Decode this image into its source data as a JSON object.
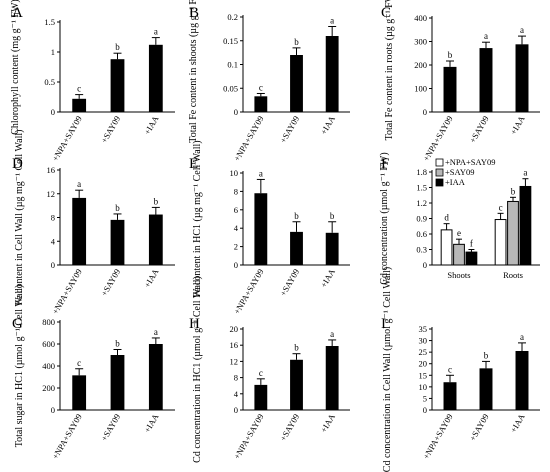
{
  "chart_data": [
    {
      "panel": "A",
      "type": "bar",
      "ylabel": "Chlorophyll content (mg g⁻¹ FW)",
      "categories": [
        "+NPA+SAY09",
        "+SAY09",
        "+IAA"
      ],
      "values": [
        0.22,
        0.88,
        1.12
      ],
      "errors": [
        0.07,
        0.1,
        0.12
      ],
      "letters": [
        "c",
        "b",
        "a"
      ],
      "ylim": [
        0,
        1.5
      ],
      "yticks": [
        "0",
        "0.5",
        "1",
        "1.5"
      ],
      "ytick_values": [
        0,
        0.5,
        1,
        1.5
      ]
    },
    {
      "panel": "B",
      "type": "bar",
      "ylabel": "Total Fe content in shoots (µg g⁻¹ FW)",
      "categories": [
        "+NPA+SAY09",
        "+SAY09",
        "+IAA"
      ],
      "values": [
        0.033,
        0.12,
        0.16
      ],
      "errors": [
        0.006,
        0.015,
        0.02
      ],
      "letters": [
        "c",
        "b",
        "a"
      ],
      "ylim": [
        0,
        0.2
      ],
      "yticks": [
        "0",
        "0.05",
        "0.1",
        "0.15",
        "0.2"
      ],
      "ytick_values": [
        0,
        0.05,
        0.1,
        0.15,
        0.2
      ]
    },
    {
      "panel": "C",
      "type": "bar",
      "ylabel": "Total Fe content in roots (µg g⁻¹ FW)",
      "categories": [
        "+NPA+SAY09",
        "+SAY09",
        "+IAA"
      ],
      "values": [
        192,
        272,
        288
      ],
      "errors": [
        25,
        25,
        35
      ],
      "letters": [
        "b",
        "a",
        "a"
      ],
      "ylim": [
        0,
        400
      ],
      "yticks": [
        "0",
        "100",
        "200",
        "300",
        "400"
      ],
      "ytick_values": [
        0,
        100,
        200,
        300,
        400
      ]
    },
    {
      "panel": "D",
      "type": "bar",
      "ylabel": "Fe content in Cell Wall (µg mg⁻¹ Cell Wall)",
      "categories": [
        "+NPA+SAY09",
        "+SAY09",
        "+IAA"
      ],
      "values": [
        11.3,
        7.6,
        8.5
      ],
      "errors": [
        1.3,
        1.0,
        1.2
      ],
      "letters": [
        "a",
        "b",
        "b"
      ],
      "ylim": [
        0,
        16
      ],
      "yticks": [
        "0",
        "4",
        "8",
        "12",
        "16"
      ],
      "ytick_values": [
        0,
        4,
        8,
        12,
        16
      ]
    },
    {
      "panel": "E",
      "type": "bar",
      "ylabel": "Fe content in HC1 (µg mg⁻¹ Cell Wall)",
      "categories": [
        "+NPA+SAY09",
        "+SAY09",
        "+IAA"
      ],
      "values": [
        7.8,
        3.6,
        3.5
      ],
      "errors": [
        1.5,
        1.1,
        1.2
      ],
      "letters": [
        "a",
        "b",
        "b"
      ],
      "ylim": [
        0,
        10
      ],
      "yticks": [
        "0",
        "2",
        "4",
        "6",
        "8",
        "10"
      ],
      "ytick_values": [
        0,
        2,
        4,
        6,
        8,
        10
      ]
    },
    {
      "panel": "F",
      "type": "grouped-bar",
      "ylabel": "Cd concentration (µmol g⁻¹ FW)",
      "categories": [
        "Shoots",
        "Roots"
      ],
      "series": [
        {
          "name": "+NPA+SAY09",
          "values": [
            0.68,
            0.88
          ],
          "errors": [
            0.12,
            0.12
          ],
          "letters": [
            "d",
            "c"
          ],
          "fill": "#ffffff"
        },
        {
          "name": "+SAY09",
          "values": [
            0.4,
            1.23
          ],
          "errors": [
            0.1,
            0.08
          ],
          "letters": [
            "e",
            "b"
          ],
          "fill": "#b8b8b8"
        },
        {
          "name": "+IAA",
          "values": [
            0.25,
            1.52
          ],
          "errors": [
            0.05,
            0.15
          ],
          "letters": [
            "f",
            "a"
          ],
          "fill": "#000000"
        }
      ],
      "legend_position": "top-left",
      "ylim": [
        0,
        1.8
      ],
      "yticks": [
        "0",
        "0.3",
        "0.6",
        "0.9",
        "1.2",
        "1.5",
        "1.8"
      ],
      "ytick_values": [
        0,
        0.3,
        0.6,
        0.9,
        1.2,
        1.5,
        1.8
      ]
    },
    {
      "panel": "G",
      "type": "bar",
      "ylabel": "Total sugar in HC1 (µmol g⁻¹ Cell Wall)",
      "categories": [
        "+NPA+SAY09",
        "+SAY09",
        "+IAA"
      ],
      "values": [
        315,
        500,
        600
      ],
      "errors": [
        60,
        50,
        55
      ],
      "letters": [
        "c",
        "b",
        "a"
      ],
      "ylim": [
        0,
        800
      ],
      "yticks": [
        "0",
        "200",
        "400",
        "600",
        "800"
      ],
      "ytick_values": [
        0,
        200,
        400,
        600,
        800
      ]
    },
    {
      "panel": "H",
      "type": "bar",
      "ylabel": "Cd concentration in HC1 (µmol g⁻¹ Cell Wall)",
      "categories": [
        "+NPA+SAY09",
        "+SAY09",
        "+IAA"
      ],
      "values": [
        6.2,
        12.4,
        15.8
      ],
      "errors": [
        1.5,
        1.5,
        1.5
      ],
      "letters": [
        "c",
        "b",
        "a"
      ],
      "ylim": [
        0,
        20
      ],
      "yticks": [
        "0",
        "4",
        "8",
        "12",
        "16",
        "20"
      ],
      "ytick_values": [
        0,
        4,
        8,
        12,
        16,
        20
      ]
    },
    {
      "panel": "I",
      "type": "bar",
      "ylabel": "Cd concentration in Cell Wall (µmol g⁻¹ Cell Wall)",
      "categories": [
        "+NPA+SAY09",
        "+SAY09",
        "+IAA"
      ],
      "values": [
        12,
        18,
        25.5
      ],
      "errors": [
        3,
        3,
        3.5
      ],
      "letters": [
        "c",
        "b",
        "a"
      ],
      "ylim": [
        0,
        35
      ],
      "yticks": [
        "0",
        "5",
        "10",
        "15",
        "20",
        "25",
        "30",
        "35"
      ],
      "ytick_values": [
        0,
        5,
        10,
        15,
        20,
        25,
        30,
        35
      ]
    }
  ]
}
